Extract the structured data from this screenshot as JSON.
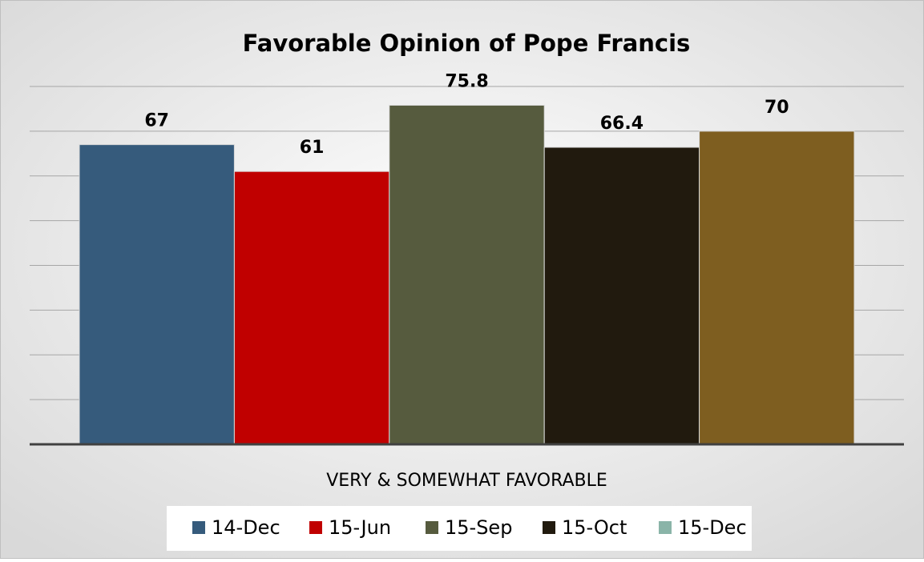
{
  "chart_data": {
    "type": "bar",
    "title": "Favorable Opinion of Pope Francis",
    "categories": [
      "VERY & SOMEWHAT FAVORABLE"
    ],
    "series": [
      {
        "name": "14-Dec",
        "color": "#365b7c",
        "legend_color": "#365b7c",
        "values": [
          67
        ]
      },
      {
        "name": "15-Jun",
        "color": "#c00000",
        "legend_color": "#c00000",
        "values": [
          61
        ]
      },
      {
        "name": "15-Sep",
        "color": "#565b3e",
        "legend_color": "#565b3e",
        "values": [
          75.8
        ]
      },
      {
        "name": "15-Oct",
        "color": "#211a0e",
        "legend_color": "#211a0e",
        "values": [
          66.4
        ]
      },
      {
        "name": "15-Dec",
        "color": "#7e5e20",
        "legend_color": "#8ab4a8",
        "values": [
          70
        ]
      }
    ],
    "ylim": [
      0,
      80
    ],
    "yticks": [
      0,
      10,
      20,
      30,
      40,
      50,
      60,
      70,
      80
    ],
    "grid": true,
    "tick_labels": false,
    "data_labels": true,
    "legend": "bottom"
  }
}
